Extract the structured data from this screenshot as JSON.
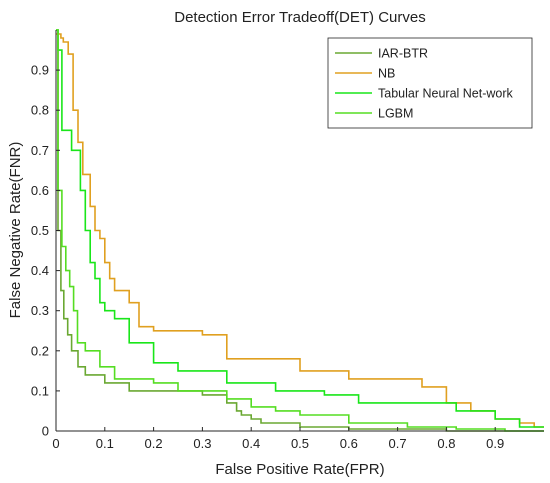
{
  "chart_data": {
    "type": "line",
    "title": "Detection Error Tradeoff(DET) Curves",
    "xlabel": "False Positive Rate(FPR)",
    "ylabel": "False Negative Rate(FNR)",
    "xlim": [
      0,
      1
    ],
    "ylim": [
      0,
      1
    ],
    "x_ticks": [
      0,
      0.1,
      0.2,
      0.3,
      0.4,
      0.5,
      0.6,
      0.7,
      0.8,
      0.9
    ],
    "x_tick_labels": [
      "0",
      "0.1",
      "0.2",
      "0.3",
      "0.4",
      "0.5",
      "0.6",
      "0.7",
      "0.8",
      "0.9"
    ],
    "y_ticks": [
      0,
      0.1,
      0.2,
      0.3,
      0.4,
      0.5,
      0.6,
      0.7,
      0.8,
      0.9
    ],
    "y_tick_labels": [
      "0",
      "0.1",
      "0.2",
      "0.3",
      "0.4",
      "0.5",
      "0.6",
      "0.7",
      "0.8",
      "0.9"
    ],
    "grid": false,
    "legend_position": "top-right",
    "series": [
      {
        "name": "IAR-BTR",
        "color": "#6aa832",
        "x": [
          0,
          0.004,
          0.004,
          0.01,
          0.01,
          0.016,
          0.016,
          0.024,
          0.024,
          0.032,
          0.032,
          0.045,
          0.045,
          0.06,
          0.06,
          0.1,
          0.1,
          0.15,
          0.15,
          0.3,
          0.3,
          0.35,
          0.35,
          0.37,
          0.37,
          0.38,
          0.38,
          0.4,
          0.4,
          0.42,
          0.42,
          0.5,
          0.5,
          0.6,
          0.6,
          0.8,
          0.8,
          1.0
        ],
        "y": [
          1.0,
          1.0,
          0.5,
          0.5,
          0.35,
          0.35,
          0.28,
          0.28,
          0.24,
          0.24,
          0.2,
          0.2,
          0.16,
          0.16,
          0.14,
          0.14,
          0.12,
          0.12,
          0.1,
          0.1,
          0.09,
          0.09,
          0.07,
          0.07,
          0.05,
          0.05,
          0.04,
          0.04,
          0.03,
          0.03,
          0.02,
          0.02,
          0.01,
          0.01,
          0.005,
          0.005,
          0,
          0
        ]
      },
      {
        "name": "NB",
        "color": "#e0a020",
        "x": [
          0,
          0.01,
          0.01,
          0.015,
          0.015,
          0.025,
          0.025,
          0.035,
          0.035,
          0.045,
          0.045,
          0.055,
          0.055,
          0.07,
          0.07,
          0.08,
          0.08,
          0.09,
          0.09,
          0.1,
          0.1,
          0.11,
          0.11,
          0.12,
          0.12,
          0.15,
          0.15,
          0.17,
          0.17,
          0.2,
          0.2,
          0.3,
          0.3,
          0.35,
          0.35,
          0.5,
          0.5,
          0.6,
          0.6,
          0.75,
          0.75,
          0.8,
          0.8,
          0.85,
          0.85,
          0.9,
          0.9,
          0.95,
          0.95,
          0.98,
          0.98,
          1.0
        ],
        "y": [
          0.99,
          0.99,
          0.98,
          0.98,
          0.97,
          0.97,
          0.94,
          0.94,
          0.8,
          0.8,
          0.72,
          0.72,
          0.64,
          0.64,
          0.56,
          0.56,
          0.5,
          0.5,
          0.48,
          0.48,
          0.42,
          0.42,
          0.38,
          0.38,
          0.35,
          0.35,
          0.32,
          0.32,
          0.26,
          0.26,
          0.25,
          0.25,
          0.24,
          0.24,
          0.18,
          0.18,
          0.15,
          0.15,
          0.13,
          0.13,
          0.11,
          0.11,
          0.07,
          0.07,
          0.05,
          0.05,
          0.03,
          0.03,
          0.02,
          0.02,
          0.01,
          0.01
        ]
      },
      {
        "name": "Tabular Neural Net-work",
        "color": "#19e619",
        "x": [
          0,
          0.004,
          0.004,
          0.012,
          0.012,
          0.032,
          0.032,
          0.05,
          0.05,
          0.06,
          0.06,
          0.07,
          0.07,
          0.08,
          0.08,
          0.09,
          0.09,
          0.1,
          0.1,
          0.12,
          0.12,
          0.15,
          0.15,
          0.2,
          0.2,
          0.25,
          0.25,
          0.35,
          0.35,
          0.45,
          0.45,
          0.55,
          0.55,
          0.62,
          0.62,
          0.82,
          0.82,
          0.9,
          0.9,
          0.95,
          0.95,
          1.0
        ],
        "y": [
          1.0,
          1.0,
          0.95,
          0.95,
          0.75,
          0.75,
          0.7,
          0.7,
          0.6,
          0.6,
          0.5,
          0.5,
          0.42,
          0.42,
          0.38,
          0.38,
          0.32,
          0.32,
          0.3,
          0.3,
          0.28,
          0.28,
          0.22,
          0.22,
          0.17,
          0.17,
          0.15,
          0.15,
          0.12,
          0.12,
          0.1,
          0.1,
          0.09,
          0.09,
          0.07,
          0.07,
          0.05,
          0.05,
          0.03,
          0.03,
          0.01,
          0.01
        ]
      },
      {
        "name": "LGBM",
        "color": "#55dd22",
        "x": [
          0,
          0.004,
          0.004,
          0.012,
          0.012,
          0.02,
          0.02,
          0.028,
          0.028,
          0.036,
          0.036,
          0.044,
          0.044,
          0.06,
          0.06,
          0.09,
          0.09,
          0.12,
          0.12,
          0.2,
          0.2,
          0.25,
          0.25,
          0.35,
          0.35,
          0.4,
          0.4,
          0.45,
          0.45,
          0.5,
          0.5,
          0.6,
          0.6,
          0.72,
          0.72,
          0.82,
          0.82,
          0.92,
          0.92,
          1.0
        ],
        "y": [
          1.0,
          1.0,
          0.6,
          0.6,
          0.46,
          0.46,
          0.4,
          0.4,
          0.36,
          0.36,
          0.3,
          0.3,
          0.22,
          0.22,
          0.2,
          0.2,
          0.16,
          0.16,
          0.13,
          0.13,
          0.12,
          0.12,
          0.1,
          0.1,
          0.08,
          0.08,
          0.06,
          0.06,
          0.05,
          0.05,
          0.04,
          0.04,
          0.02,
          0.02,
          0.01,
          0.01,
          0.005,
          0.005,
          0,
          0
        ]
      }
    ]
  }
}
